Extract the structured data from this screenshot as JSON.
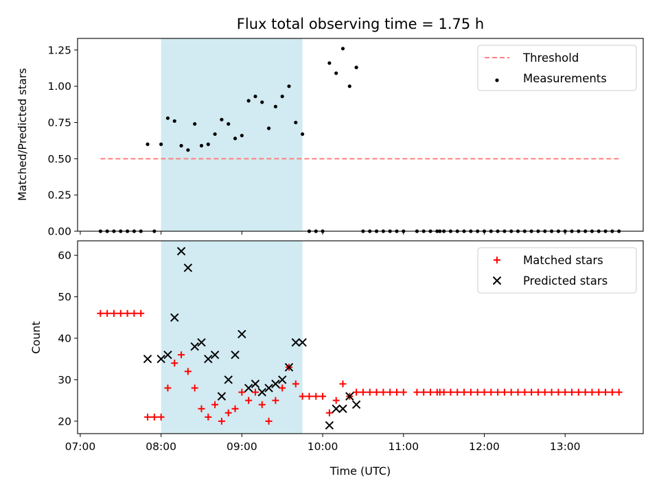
{
  "chart_data": {
    "title": "Flux total observing time = 1.75 h",
    "xlabel": "Time (UTC)",
    "x_ticks": [
      "07:00",
      "08:00",
      "09:00",
      "10:00",
      "11:00",
      "12:00",
      "13:00"
    ],
    "xlim": [
      "06:58",
      "13:58"
    ],
    "observing_window": {
      "start": "08:00",
      "end": "09:45",
      "color": "#add8e6"
    },
    "panels": [
      {
        "type": "scatter",
        "ylabel": "Matched/Predicted stars",
        "ylim": [
          0,
          1.33
        ],
        "y_ticks": [
          "0.00",
          "0.25",
          "0.50",
          "0.75",
          "1.00",
          "1.25"
        ],
        "legend": {
          "position": "top-right",
          "entries": [
            "Threshold",
            "Measurements"
          ]
        },
        "series": [
          {
            "name": "Threshold",
            "kind": "dashed-line",
            "color": "#ff7f7f",
            "points": [
              {
                "t": "07:15",
                "v": 0.5
              },
              {
                "t": "13:40",
                "v": 0.5
              }
            ]
          },
          {
            "name": "Measurements",
            "kind": "dot",
            "color": "#000000",
            "points": [
              {
                "t": "07:15",
                "v": 0
              },
              {
                "t": "07:20",
                "v": 0
              },
              {
                "t": "07:25",
                "v": 0
              },
              {
                "t": "07:30",
                "v": 0
              },
              {
                "t": "07:35",
                "v": 0
              },
              {
                "t": "07:40",
                "v": 0
              },
              {
                "t": "07:45",
                "v": 0
              },
              {
                "t": "07:50",
                "v": 0.6
              },
              {
                "t": "07:55",
                "v": 0
              },
              {
                "t": "08:00",
                "v": 0.6
              },
              {
                "t": "08:05",
                "v": 0.78
              },
              {
                "t": "08:10",
                "v": 0.76
              },
              {
                "t": "08:15",
                "v": 0.59
              },
              {
                "t": "08:20",
                "v": 0.56
              },
              {
                "t": "08:25",
                "v": 0.74
              },
              {
                "t": "08:30",
                "v": 0.59
              },
              {
                "t": "08:35",
                "v": 0.6
              },
              {
                "t": "08:40",
                "v": 0.67
              },
              {
                "t": "08:45",
                "v": 0.77
              },
              {
                "t": "08:50",
                "v": 0.74
              },
              {
                "t": "08:55",
                "v": 0.64
              },
              {
                "t": "09:00",
                "v": 0.66
              },
              {
                "t": "09:05",
                "v": 0.9
              },
              {
                "t": "09:10",
                "v": 0.93
              },
              {
                "t": "09:15",
                "v": 0.89
              },
              {
                "t": "09:20",
                "v": 0.71
              },
              {
                "t": "09:25",
                "v": 0.86
              },
              {
                "t": "09:30",
                "v": 0.93
              },
              {
                "t": "09:35",
                "v": 1.0
              },
              {
                "t": "09:40",
                "v": 0.75
              },
              {
                "t": "09:45",
                "v": 0.67
              },
              {
                "t": "09:50",
                "v": 0
              },
              {
                "t": "09:55",
                "v": 0
              },
              {
                "t": "10:00",
                "v": 0
              },
              {
                "t": "10:05",
                "v": 1.16
              },
              {
                "t": "10:10",
                "v": 1.09
              },
              {
                "t": "10:15",
                "v": 1.26
              },
              {
                "t": "10:20",
                "v": 1.0
              },
              {
                "t": "10:25",
                "v": 1.13
              },
              {
                "t": "10:30",
                "v": 0
              },
              {
                "t": "10:35",
                "v": 0
              },
              {
                "t": "10:40",
                "v": 0
              },
              {
                "t": "10:45",
                "v": 0
              },
              {
                "t": "10:50",
                "v": 0
              },
              {
                "t": "10:55",
                "v": 0
              },
              {
                "t": "11:00",
                "v": 0
              },
              {
                "t": "11:10",
                "v": 0
              },
              {
                "t": "11:15",
                "v": 0
              },
              {
                "t": "11:20",
                "v": 0
              },
              {
                "t": "11:25",
                "v": 0
              },
              {
                "t": "11:27",
                "v": 0
              },
              {
                "t": "11:30",
                "v": 0
              },
              {
                "t": "11:35",
                "v": 0
              },
              {
                "t": "11:40",
                "v": 0
              },
              {
                "t": "11:45",
                "v": 0
              },
              {
                "t": "11:50",
                "v": 0
              },
              {
                "t": "11:55",
                "v": 0
              },
              {
                "t": "12:00",
                "v": 0
              },
              {
                "t": "12:05",
                "v": 0
              },
              {
                "t": "12:10",
                "v": 0
              },
              {
                "t": "12:15",
                "v": 0
              },
              {
                "t": "12:20",
                "v": 0
              },
              {
                "t": "12:25",
                "v": 0
              },
              {
                "t": "12:30",
                "v": 0
              },
              {
                "t": "12:35",
                "v": 0
              },
              {
                "t": "12:40",
                "v": 0
              },
              {
                "t": "12:45",
                "v": 0
              },
              {
                "t": "12:50",
                "v": 0
              },
              {
                "t": "12:55",
                "v": 0
              },
              {
                "t": "13:00",
                "v": 0
              },
              {
                "t": "13:05",
                "v": 0
              },
              {
                "t": "13:10",
                "v": 0
              },
              {
                "t": "13:15",
                "v": 0
              },
              {
                "t": "13:20",
                "v": 0
              },
              {
                "t": "13:25",
                "v": 0
              },
              {
                "t": "13:30",
                "v": 0
              },
              {
                "t": "13:35",
                "v": 0
              },
              {
                "t": "13:40",
                "v": 0
              }
            ]
          }
        ]
      },
      {
        "type": "scatter",
        "ylabel": "Count",
        "ylim": [
          17,
          63.5
        ],
        "y_ticks": [
          "20",
          "30",
          "40",
          "50",
          "60"
        ],
        "legend": {
          "position": "top-right",
          "entries": [
            "Matched stars",
            "Predicted stars"
          ]
        },
        "series": [
          {
            "name": "Matched stars",
            "kind": "plus",
            "color": "#ff0000",
            "points": [
              {
                "t": "07:15",
                "v": 46
              },
              {
                "t": "07:20",
                "v": 46
              },
              {
                "t": "07:25",
                "v": 46
              },
              {
                "t": "07:30",
                "v": 46
              },
              {
                "t": "07:35",
                "v": 46
              },
              {
                "t": "07:40",
                "v": 46
              },
              {
                "t": "07:45",
                "v": 46
              },
              {
                "t": "07:50",
                "v": 21
              },
              {
                "t": "07:55",
                "v": 21
              },
              {
                "t": "08:00",
                "v": 21
              },
              {
                "t": "08:05",
                "v": 28
              },
              {
                "t": "08:10",
                "v": 34
              },
              {
                "t": "08:15",
                "v": 36
              },
              {
                "t": "08:20",
                "v": 32
              },
              {
                "t": "08:25",
                "v": 28
              },
              {
                "t": "08:30",
                "v": 23
              },
              {
                "t": "08:35",
                "v": 21
              },
              {
                "t": "08:40",
                "v": 24
              },
              {
                "t": "08:45",
                "v": 20
              },
              {
                "t": "08:50",
                "v": 22
              },
              {
                "t": "08:55",
                "v": 23
              },
              {
                "t": "09:00",
                "v": 27
              },
              {
                "t": "09:05",
                "v": 25
              },
              {
                "t": "09:10",
                "v": 27
              },
              {
                "t": "09:15",
                "v": 24
              },
              {
                "t": "09:20",
                "v": 20
              },
              {
                "t": "09:25",
                "v": 25
              },
              {
                "t": "09:30",
                "v": 28
              },
              {
                "t": "09:35",
                "v": 33
              },
              {
                "t": "09:40",
                "v": 29
              },
              {
                "t": "09:45",
                "v": 26
              },
              {
                "t": "09:50",
                "v": 26
              },
              {
                "t": "09:55",
                "v": 26
              },
              {
                "t": "10:00",
                "v": 26
              },
              {
                "t": "10:05",
                "v": 22
              },
              {
                "t": "10:10",
                "v": 25
              },
              {
                "t": "10:15",
                "v": 29
              },
              {
                "t": "10:20",
                "v": 26
              },
              {
                "t": "10:25",
                "v": 27
              },
              {
                "t": "10:30",
                "v": 27
              },
              {
                "t": "10:35",
                "v": 27
              },
              {
                "t": "10:40",
                "v": 27
              },
              {
                "t": "10:45",
                "v": 27
              },
              {
                "t": "10:50",
                "v": 27
              },
              {
                "t": "10:55",
                "v": 27
              },
              {
                "t": "11:00",
                "v": 27
              },
              {
                "t": "11:10",
                "v": 27
              },
              {
                "t": "11:15",
                "v": 27
              },
              {
                "t": "11:20",
                "v": 27
              },
              {
                "t": "11:25",
                "v": 27
              },
              {
                "t": "11:27",
                "v": 27
              },
              {
                "t": "11:30",
                "v": 27
              },
              {
                "t": "11:35",
                "v": 27
              },
              {
                "t": "11:40",
                "v": 27
              },
              {
                "t": "11:45",
                "v": 27
              },
              {
                "t": "11:50",
                "v": 27
              },
              {
                "t": "11:55",
                "v": 27
              },
              {
                "t": "12:00",
                "v": 27
              },
              {
                "t": "12:05",
                "v": 27
              },
              {
                "t": "12:10",
                "v": 27
              },
              {
                "t": "12:15",
                "v": 27
              },
              {
                "t": "12:20",
                "v": 27
              },
              {
                "t": "12:25",
                "v": 27
              },
              {
                "t": "12:30",
                "v": 27
              },
              {
                "t": "12:35",
                "v": 27
              },
              {
                "t": "12:40",
                "v": 27
              },
              {
                "t": "12:45",
                "v": 27
              },
              {
                "t": "12:50",
                "v": 27
              },
              {
                "t": "12:55",
                "v": 27
              },
              {
                "t": "13:00",
                "v": 27
              },
              {
                "t": "13:05",
                "v": 27
              },
              {
                "t": "13:10",
                "v": 27
              },
              {
                "t": "13:15",
                "v": 27
              },
              {
                "t": "13:20",
                "v": 27
              },
              {
                "t": "13:25",
                "v": 27
              },
              {
                "t": "13:30",
                "v": 27
              },
              {
                "t": "13:35",
                "v": 27
              },
              {
                "t": "13:40",
                "v": 27
              }
            ]
          },
          {
            "name": "Predicted stars",
            "kind": "x",
            "color": "#000000",
            "points": [
              {
                "t": "07:50",
                "v": 35
              },
              {
                "t": "08:00",
                "v": 35
              },
              {
                "t": "08:05",
                "v": 36
              },
              {
                "t": "08:10",
                "v": 45
              },
              {
                "t": "08:15",
                "v": 61
              },
              {
                "t": "08:20",
                "v": 57
              },
              {
                "t": "08:25",
                "v": 38
              },
              {
                "t": "08:30",
                "v": 39
              },
              {
                "t": "08:35",
                "v": 35
              },
              {
                "t": "08:40",
                "v": 36
              },
              {
                "t": "08:45",
                "v": 26
              },
              {
                "t": "08:50",
                "v": 30
              },
              {
                "t": "08:55",
                "v": 36
              },
              {
                "t": "09:00",
                "v": 41
              },
              {
                "t": "09:05",
                "v": 28
              },
              {
                "t": "09:10",
                "v": 29
              },
              {
                "t": "09:15",
                "v": 27
              },
              {
                "t": "09:20",
                "v": 28
              },
              {
                "t": "09:25",
                "v": 29
              },
              {
                "t": "09:30",
                "v": 30
              },
              {
                "t": "09:35",
                "v": 33
              },
              {
                "t": "09:40",
                "v": 39
              },
              {
                "t": "09:45",
                "v": 39
              },
              {
                "t": "10:05",
                "v": 19
              },
              {
                "t": "10:10",
                "v": 23
              },
              {
                "t": "10:15",
                "v": 23
              },
              {
                "t": "10:20",
                "v": 26
              },
              {
                "t": "10:25",
                "v": 24
              }
            ]
          }
        ]
      }
    ]
  }
}
